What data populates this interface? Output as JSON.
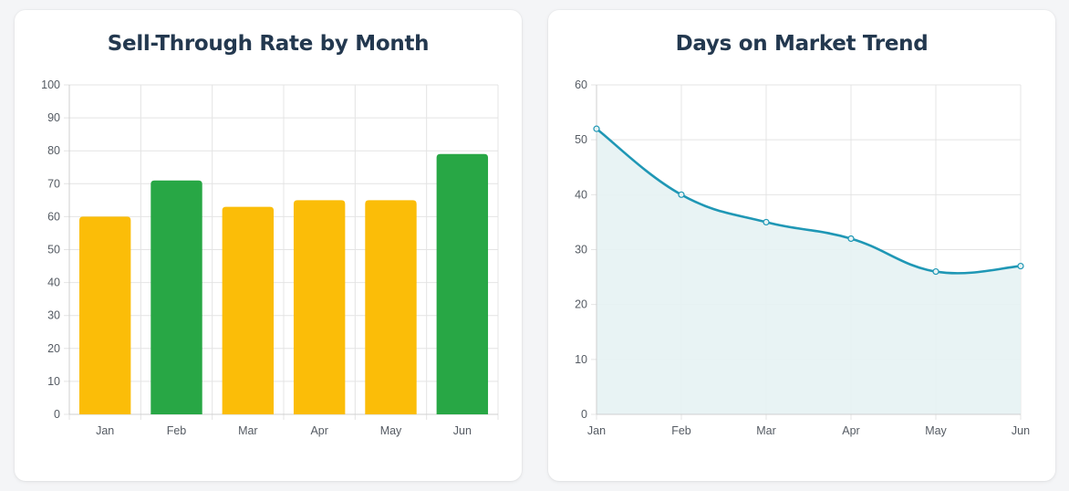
{
  "chart_data": [
    {
      "type": "bar",
      "title": "Sell-Through Rate by Month",
      "categories": [
        "Jan",
        "Feb",
        "Mar",
        "Apr",
        "May",
        "Jun"
      ],
      "values": [
        60,
        71,
        63,
        65,
        65,
        79
      ],
      "colors": [
        "#fbbd08",
        "#28a745",
        "#fbbd08",
        "#fbbd08",
        "#fbbd08",
        "#28a745"
      ],
      "ylim": [
        0,
        100
      ],
      "yticks": [
        0,
        10,
        20,
        30,
        40,
        50,
        60,
        70,
        80,
        90,
        100
      ],
      "xlabel": "",
      "ylabel": "",
      "grid": true,
      "legend": "none"
    },
    {
      "type": "area",
      "title": "Days on Market Trend",
      "categories": [
        "Jan",
        "Feb",
        "Mar",
        "Apr",
        "May",
        "Jun"
      ],
      "values": [
        52,
        40,
        35,
        32,
        26,
        27
      ],
      "line_color": "#1f97b5",
      "fill_color": "#e6f2f3",
      "ylim": [
        0,
        60
      ],
      "yticks": [
        0,
        10,
        20,
        30,
        40,
        50,
        60
      ],
      "xlabel": "",
      "ylabel": "",
      "grid": true,
      "legend": "none"
    }
  ]
}
